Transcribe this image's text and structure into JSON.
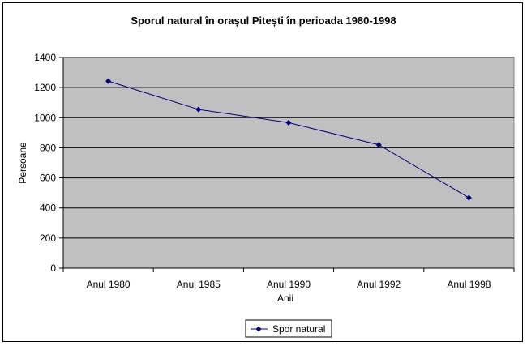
{
  "chart_data": {
    "type": "line",
    "title": "Sporul natural în orașul Pitești în perioada 1980-1998",
    "xlabel": "Anii",
    "ylabel": "Persoane",
    "categories": [
      "Anul 1980",
      "Anul 1985",
      "Anul 1990",
      "Anul 1992",
      "Anul 1998"
    ],
    "series": [
      {
        "name": "Spor natural",
        "values": [
          1243,
          1055,
          967,
          820,
          468
        ]
      }
    ],
    "ylim": [
      0,
      1400
    ],
    "yticks": [
      0,
      200,
      400,
      600,
      800,
      1000,
      1200,
      1400
    ],
    "grid": true,
    "legend": "bottom",
    "colors": {
      "plot_background": "#C0C0C0",
      "line": "#000080",
      "gridline": "#000000"
    }
  }
}
